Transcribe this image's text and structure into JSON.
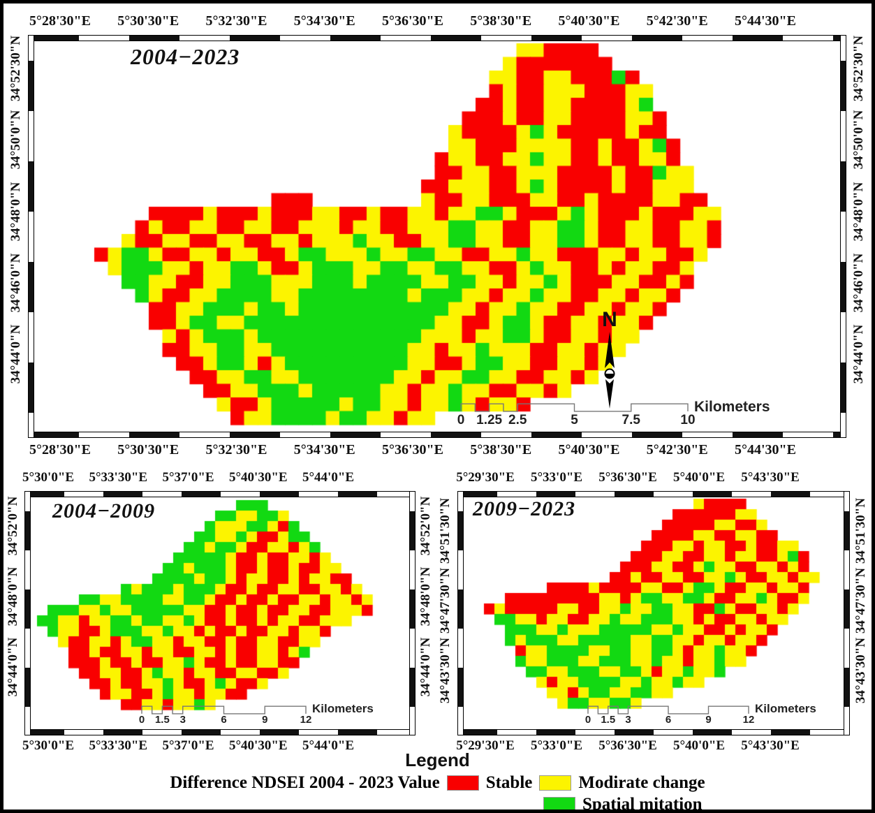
{
  "colors": {
    "stable_red": "#F90000",
    "moderate_yellow": "#FCF400",
    "mitigation_green": "#12D912"
  },
  "panels": [
    {
      "title": "2004−2023",
      "north_label": "N",
      "lon": [
        "5°28'30\"E",
        "5°30'30\"E",
        "5°32'30\"E",
        "5°34'30\"E",
        "5°36'30\"E",
        "5°38'30\"E",
        "5°40'30\"E",
        "5°42'30\"E",
        "5°44'30\"E"
      ],
      "lat": [
        "34°52'30\"N",
        "34°50'0\"N",
        "34°48'0\"N",
        "34°46'0\"N",
        "34°44'0\"N"
      ],
      "scalebar": {
        "labels": [
          "0",
          "1.25",
          "2.5",
          "5",
          "7.5",
          "10"
        ],
        "unit": "Kilometers"
      },
      "grid": {
        "cell": 19.5,
        "ox": 86,
        "oy": 3,
        "rows": [
          "...............................YYRRRR.........",
          "..............................YRRRRRRR........",
          ".............................YYRRYYRRRGR......",
          ".............................RYRRYYYRRRYY.....",
          "............................RRYRRYYRRRRYG.....",
          "...........................RRRYRRYYRRRRYYR....",
          "..........................YRRRRYGYRRRRRYRR....",
          "..........................YYRRRYYYYRRYRRYGR...",
          ".........................RYYRRYYGYYRRYRRYYR...",
          ".........................RRYYRRYYYRRRRYRRGYY..",
          "........................RRYYYRRYGYRRRRYRRYYY..",
          ".............RRR........YRRYYRRRYYRRYRRRRYYRR.",
          "....RRRRYRRRYRRRYYRRYRRYYRYYGGYRRRYGYRRRYRRRYY",
          "...RYRRYYRRYYRRYYYRYYRRYYYGGYYRRYYGGYRRYYRRYYR",
          "..YRRYYRRYYRRYYRYYYGYYRRYYGGYYRRYYGGYRRYYRRYYR",
          "RYGGYRRYYRYYRRYGGYYYGYYGGYYRRYYGYYRRRYYRYYRRY.",
          ".YGGGYYRYYGGYRRYGGGYYGGYYGGYYRRYGYYRRYRYYRRY..",
          "..GGYYRRYYGGGYYYGGGYGGGGYYGGYYRYYGYRRRYYRRYR..",
          "...GYRRYYGGGGYYGGGGGGGGYGGGYYRYYGYYRRYYRYYR...",
          "....RRYYGGGYGGYGGGGGGGGGGGYYRYYGYYRRYYRYYR....",
          "....RRYGGYYGGGGGGGGGGGGGGYYRRYGGYRRYYRYYR.....",
          ".....YRYGGGYGGGGGGGGGGGGYYYRYYGGYRRYYRYY......",
          ".....RRYYGGYYGGGGGGGGGGYYRYYGYYYRRYYRYY.......",
          "......RRYGGYRYGGGGGGGGGYYRRYGGYYRRYYRY........",
          ".......RRYYGGYYGGGGGGGYYRYYGGYYRRYYRY.........",
          "........RRYYGGGYGGGGGYYRYYGYYRRYYRY...........",
          ".........YRRYGGGGGYGGYYRYYGYRYYR..............",
          "..........RYYGGGGYGGYYRYY....................."
        ]
      }
    },
    {
      "title": "2004−2009",
      "lon": [
        "5°30'0\"E",
        "5°33'30\"E",
        "5°37'0\"E",
        "5°40'30\"E",
        "5°44'0\"E"
      ],
      "lat": [
        "34°52'0\"N",
        "34°48'0\"N",
        "34°44'0\"N"
      ],
      "scalebar": {
        "labels": [
          "0",
          "1.5",
          "3",
          "6",
          "9",
          "12"
        ],
        "unit": "Kilometers"
      },
      "grid": {
        "cell": 15,
        "ox": 9,
        "oy": 4,
        "rows": [
          "...................GGG..........",
          ".................GGYYGGY........",
          "................GYYYGGYRG.......",
          "...............GGYYGYRRYGG......",
          "..............GGYGGYRRYYRYG.....",
          ".............GGGGGYRRYRRYYRY....",
          "............GGYGGGYRRYRRYRRYY...",
          "...........GGGGYGGYRYYRRYRYYRR..",
          "........GYGGGYGGGYRRYRRYYRRYYRY.",
          "....GGYYGGGGYYGGYRRYRRYRRYYRYYRY",
          ".GGGYYGYYGGGGGYYRRYRRYRRYYRRYYYR",
          "GGYYRYYGGYGGYYGYRRYRRYRYYRRYYY..",
          ".GYYRRYGGGYYGYYRYRRYRRYYRYYR....",
          "..YRRYYRYGGYYRYYRRYRRYYRRYY.....",
          "...RRYRRYYRYYRRYYRYRRYYRYG......",
          "...RRRYRRYRRYYGYRRYRRYYRR.......",
          "....RRYYRRYGYYRYYRRYYRRY........",
          ".....RRYRRYYGYRRYGYRRY..........",
          "......RYYRRYGYYRYYRR............",
          "........RRYYRYYGY..............."
        ]
      }
    },
    {
      "title": "2009−2023",
      "lon": [
        "5°29'30\"E",
        "5°33'0\"E",
        "5°36'30\"E",
        "5°40'0\"E",
        "5°43'30\"E"
      ],
      "lat": [
        "34°51'30\"N",
        "34°47'30\"N",
        "34°43'30\"N"
      ],
      "scalebar": {
        "labels": [
          "0",
          "1.5",
          "3",
          "6",
          "9",
          "12"
        ],
        "unit": "Kilometers"
      },
      "grid": {
        "cell": 15,
        "ox": 29,
        "oy": 2,
        "rows": [
          "....................YRRRR.......",
          "..................RRRRRRYY......",
          ".................RRRRRYYRRY.....",
          "................RRRRYYRRYYRR....",
          "...............RRRYYRYYRRYRRYY..",
          "..............RRRYYRRYYRYYRRYGR.",
          ".............RRRYYRRYGYYRRYYRYR.",
          "............RRYRRYYRRYYGYRRYYRYY",
          "......RRRRYRRRRYYRRYGGYRRYYRYYR.",
          "..RRRRRRRRRYYRYGGYYGGYRRYYGYRRY.",
          "RYRRRRRYYRRYYGYYGGYYRRGYRRYYRY..",
          ".GGYYRYYRRYYGYYGGGYYRYRRYYRYY...",
          "..GGGYYGYYYGGGGGYYGYYRRYRYYR....",
          "..GYGGGYYGGGGGYYGGYYRYYRYYR.....",
          "...RYYGGGGYYGGYYGGYRYYGYYR......",
          "...GYYGGGYYGGGYYGYYRYYGYY.......",
          "....GGYYGGGYYGGYRYYGYYG.........",
          ".....YRYYGGGGYYGYYGYY...........",
          "......YYRYGGYYGGYY..............",
          ".......YGGYYGGY................."
        ]
      }
    }
  ],
  "legend": {
    "title": "Legend",
    "caption": "Difference NDSEI 2004 - 2023 Value",
    "items": [
      {
        "label": "Stable"
      },
      {
        "label": "Modirate change"
      },
      {
        "label": "Spatial mitation"
      }
    ]
  }
}
